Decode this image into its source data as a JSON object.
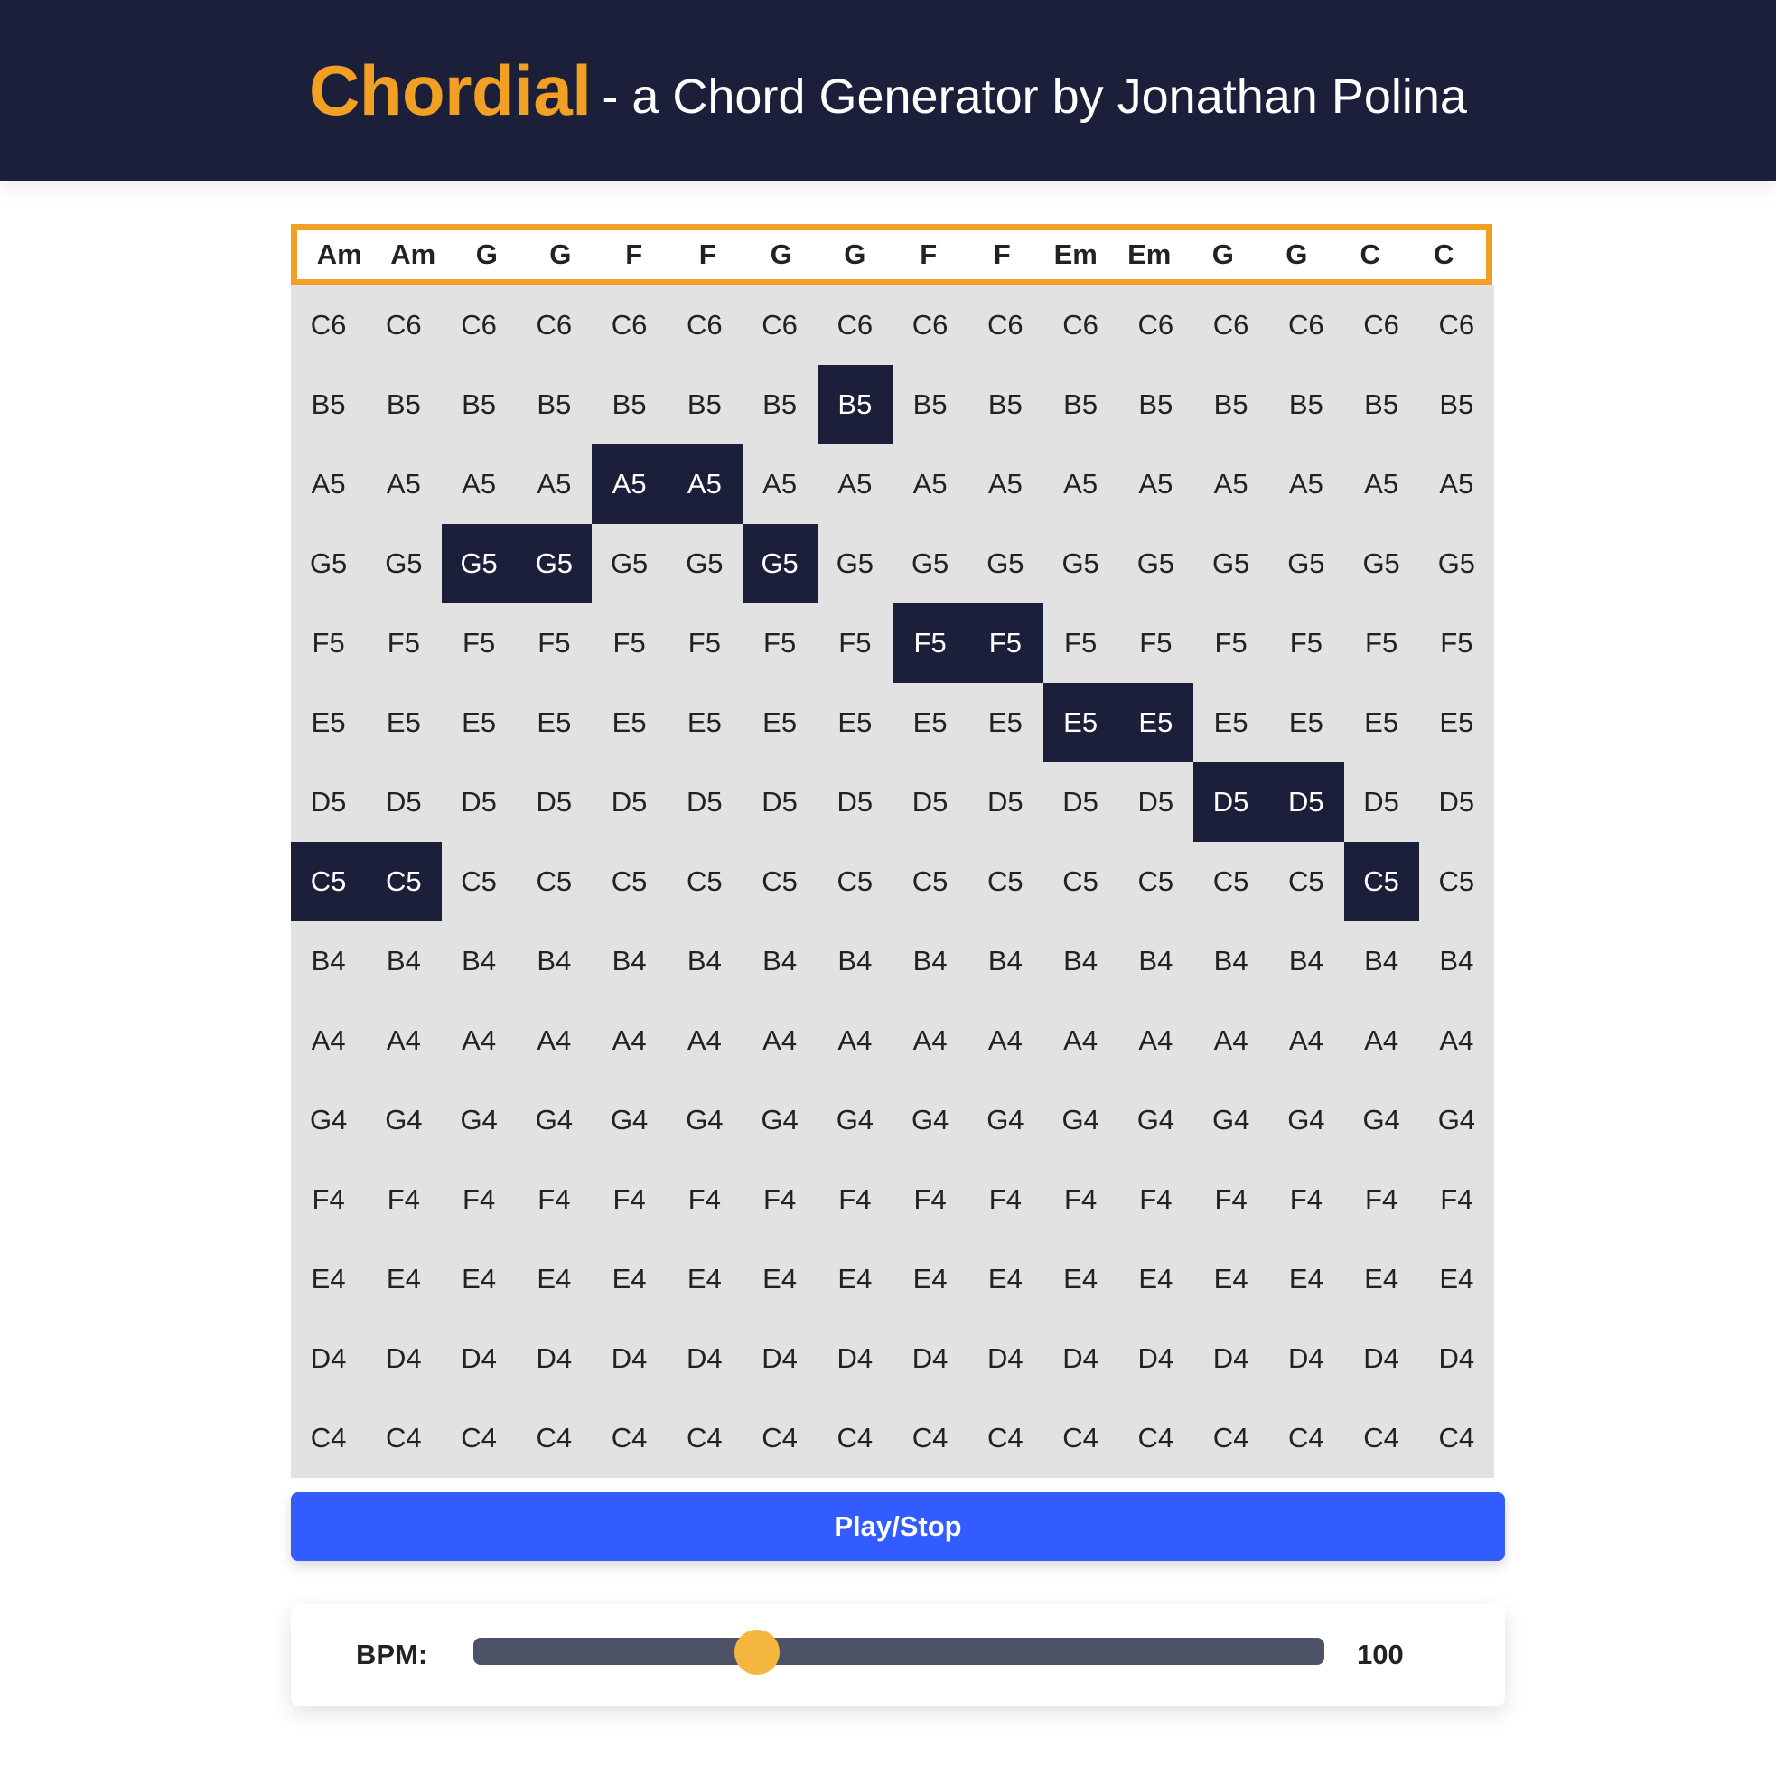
{
  "header": {
    "brand": "Chordial",
    "subtitle": "- a Chord Generator by Jonathan Polina"
  },
  "chords": [
    "Am",
    "Am",
    "G",
    "G",
    "F",
    "F",
    "G",
    "G",
    "F",
    "F",
    "Em",
    "Em",
    "G",
    "G",
    "C",
    "C"
  ],
  "notes": [
    "C6",
    "B5",
    "A5",
    "G5",
    "F5",
    "E5",
    "D5",
    "C5",
    "B4",
    "A4",
    "G4",
    "F4",
    "E4",
    "D4",
    "C4"
  ],
  "active_notes": [
    "C5",
    "C5",
    "G5",
    "G5",
    "A5",
    "A5",
    "G5",
    "B5",
    "F5",
    "F5",
    "E5",
    "E5",
    "D5",
    "D5",
    "C5",
    null
  ],
  "controls": {
    "play_label": "Play/Stop",
    "bpm_label": "BPM:",
    "bpm_value": "100",
    "bpm_min": 40,
    "bpm_max": 220,
    "bpm": 100
  },
  "colors": {
    "accent": "#f2a024",
    "header_bg": "#1b1f3a",
    "active_cell": "#1b1f3a",
    "grid_bg": "#e2e2e2",
    "play_button": "#335cff",
    "slider_track": "#4d5266",
    "slider_thumb": "#f4b63f"
  }
}
